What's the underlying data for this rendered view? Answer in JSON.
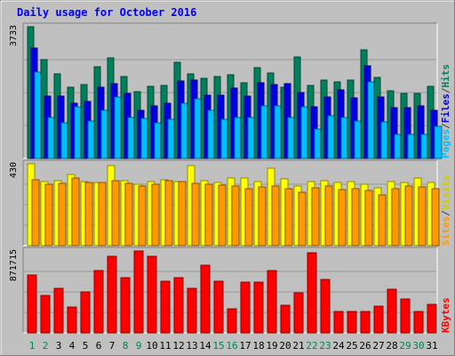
{
  "chart_data": {
    "type": "bar",
    "title": "Daily usage for October 2016",
    "categories": [
      "1",
      "2",
      "3",
      "4",
      "5",
      "6",
      "7",
      "8",
      "9",
      "10",
      "11",
      "12",
      "13",
      "14",
      "15",
      "16",
      "17",
      "18",
      "19",
      "20",
      "21",
      "22",
      "23",
      "24",
      "25",
      "26",
      "27",
      "28",
      "29",
      "30",
      "31"
    ],
    "weekend_days": [
      "1",
      "2",
      "8",
      "9",
      "15",
      "16",
      "22",
      "23",
      "29",
      "30"
    ],
    "panels": [
      {
        "id": "hits",
        "max_label": "3733",
        "ymax": 3733,
        "series": [
          {
            "name": "Hits",
            "color": "#00805c",
            "values": [
              3733,
              2790,
              2390,
              2030,
              2090,
              2590,
              2850,
              2320,
              1880,
              2050,
              2070,
              2720,
              2400,
              2260,
              2330,
              2380,
              2150,
              2570,
              2410,
              2030,
              2880,
              2060,
              2210,
              2170,
              2230,
              3080,
              2290,
              1910,
              1830,
              1840,
              2050
            ]
          },
          {
            "name": "Files",
            "color": "#0000e0",
            "values": [
              3140,
              1760,
              1760,
              1570,
              1610,
              2030,
              2130,
              1830,
              1360,
              1490,
              1570,
              2200,
              2210,
              1790,
              1780,
              2000,
              1760,
              2150,
              2090,
              2110,
              1870,
              1460,
              1750,
              1940,
              1710,
              2620,
              1740,
              1430,
              1450,
              1500,
              1360
            ]
          },
          {
            "name": "Pages",
            "color": "#00bfff",
            "values": [
              2450,
              1150,
              1000,
              1460,
              1050,
              1370,
              1740,
              1150,
              1140,
              1000,
              1110,
              1560,
              1700,
              1350,
              1120,
              1150,
              1150,
              1500,
              1490,
              1150,
              1470,
              820,
              1220,
              1150,
              1050,
              2170,
              1030,
              680,
              680,
              680,
              900
            ]
          }
        ]
      },
      {
        "id": "visits",
        "max_label": "430",
        "ymax": 430,
        "series": [
          {
            "name": "Visits",
            "color": "#ffff00",
            "values": [
              430,
              336,
              342,
              372,
              336,
              334,
              420,
              342,
              324,
              335,
              345,
              335,
              422,
              341,
              334,
              354,
              354,
              335,
              408,
              352,
              311,
              337,
              342,
              330,
              336,
              324,
              302,
              337,
              331,
              353,
              332
            ]
          },
          {
            "name": "Sites",
            "color": "#ff9900",
            "values": [
              347,
              321,
              327,
              356,
              334,
              330,
              341,
              326,
              315,
              322,
              342,
              335,
              326,
              322,
              320,
              315,
              300,
              310,
              311,
              297,
              281,
              305,
              311,
              294,
              298,
              291,
              267,
              301,
              311,
              309,
              299
            ]
          }
        ]
      },
      {
        "id": "kbytes",
        "max_label": "871715",
        "ymax": 871715,
        "series": [
          {
            "name": "KBytes",
            "color": "#ff0000",
            "values": [
              616000,
              400000,
              478000,
              273000,
              434000,
              667000,
              814000,
              589000,
              871715,
              813000,
              545000,
              591000,
              472000,
              717000,
              546000,
              257000,
              538000,
              538000,
              661000,
              296000,
              422000,
              850000,
              565000,
              224000,
              224000,
              224000,
              281000,
              461000,
              358000,
              227000,
              303000
            ]
          }
        ]
      }
    ],
    "legend_right": [
      {
        "panel": "hits",
        "items": [
          {
            "label": "Pages",
            "color": "#00bfff"
          },
          {
            "label": "/",
            "color": "#404040"
          },
          {
            "label": "Files",
            "color": "#0000e0"
          },
          {
            "label": "/",
            "color": "#404040"
          },
          {
            "label": "Hits",
            "color": "#00805c"
          }
        ]
      },
      {
        "panel": "visits",
        "items": [
          {
            "label": "Sites",
            "color": "#ff9900"
          },
          {
            "label": "/",
            "color": "#404040"
          },
          {
            "label": "Visits",
            "color": "#cccc00"
          }
        ]
      },
      {
        "panel": "kbytes",
        "items": [
          {
            "label": "KBytes",
            "color": "#ff0000"
          }
        ]
      }
    ],
    "colors": {
      "title": "#0000ff",
      "weekday_label": "#000000",
      "weekend_label": "#00805c",
      "panel_bg": "#c0c0c0",
      "outer_bg": "#c0c0c0"
    }
  }
}
